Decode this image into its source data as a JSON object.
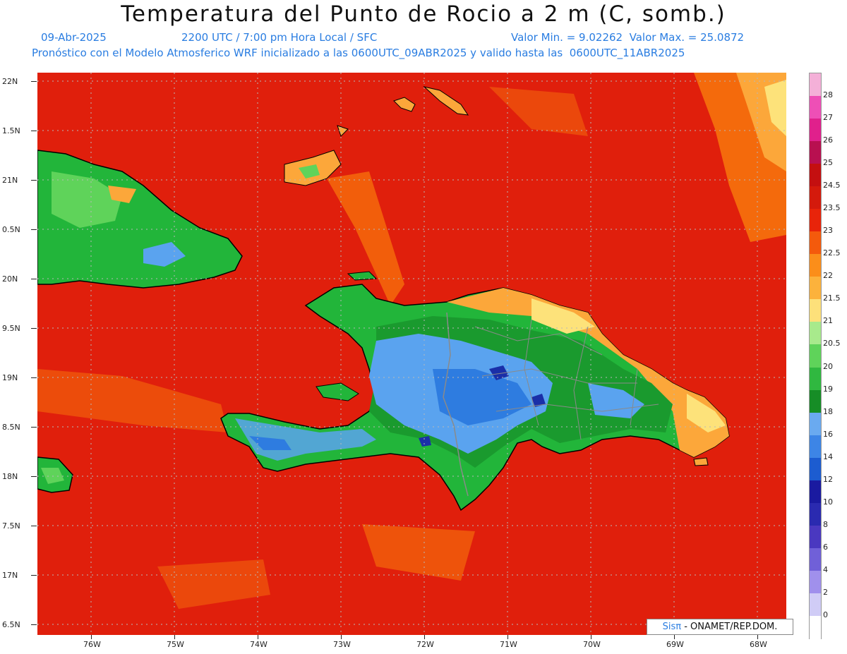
{
  "header": {
    "title": "Temperatura del Punto de Rocio a 2 m (C, somb.)",
    "date": "09-Abr-2025",
    "time_info": "2200 UTC / 7:00 pm Hora Local / SFC",
    "min_max": "Valor Min. = 9.02262  Valor Max. = 25.0872",
    "model_info": "Pronóstico con el Modelo Atmosferico WRF inicializado a las 0600UTC_09ABR2025 y valido hasta las  0600UTC_11ABR2025"
  },
  "map": {
    "lat_labels": [
      "22N",
      "1.5N",
      "21N",
      "0.5N",
      "20N",
      "9.5N",
      "19N",
      "8.5N",
      "18N",
      "7.5N",
      "17N",
      "6.5N"
    ],
    "lon_labels": [
      "76W",
      "75W",
      "74W",
      "73W",
      "72W",
      "71W",
      "70W",
      "69W",
      "68W"
    ],
    "colors": {
      "background_red": "#e01f0c",
      "orange": "#f46a0c",
      "light_orange": "#fca73a",
      "yellow": "#fde27a",
      "green_light": "#5fd35a",
      "green": "#22b53a",
      "green_dark": "#1a9a2e",
      "blue_light": "#5aa3ef",
      "blue": "#2e7ce0",
      "navy": "#1a2fa8"
    }
  },
  "colorbar": {
    "labels": [
      "28",
      "27",
      "26",
      "25",
      "24.5",
      "23.5",
      "23",
      "22.5",
      "22",
      "21.5",
      "21",
      "20.5",
      "20",
      "19",
      "18",
      "16",
      "14",
      "12",
      "10",
      "8",
      "6",
      "4",
      "2",
      "0"
    ],
    "colors": [
      "#f4b0d8",
      "#ee4fb6",
      "#e0208c",
      "#b81050",
      "#c40f10",
      "#d41a0c",
      "#e8240a",
      "#f45a0c",
      "#fb8e1a",
      "#fcb23c",
      "#fde07a",
      "#a8ea8c",
      "#5fd35a",
      "#30b840",
      "#168d26",
      "#6aaaf0",
      "#3d85e6",
      "#1c5cd0",
      "#1a1aa0",
      "#2a2ab0",
      "#4a38c0",
      "#7060d8",
      "#a090ec",
      "#d0ccf6",
      "#ffffff"
    ]
  },
  "credit": {
    "sis": "Sisπ",
    "text": " - ONAMET/REP.DOM."
  }
}
